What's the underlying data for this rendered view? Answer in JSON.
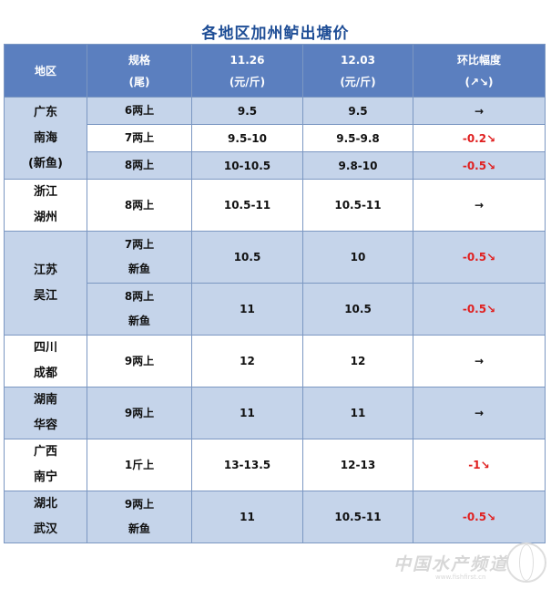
{
  "title": "各地区加州鲈出塘价",
  "header": {
    "region": "地区",
    "spec": "规格",
    "spec_unit": "(尾)",
    "date1": "11.26",
    "date1_unit": "(元/斤)",
    "date2": "12.03",
    "date2_unit": "(元/斤)",
    "change": "环比幅度",
    "change_unit": "(↗↘)"
  },
  "rows": [
    {
      "region": [
        "广东",
        "南海",
        "(新鱼)"
      ],
      "specs": [
        {
          "spec": [
            "6两上"
          ],
          "p1": "9.5",
          "p2": "9.5",
          "change": "→"
        },
        {
          "spec": [
            "7两上"
          ],
          "p1": "9.5-10",
          "p2": "9.5-9.8",
          "change": "-0.2↘"
        },
        {
          "spec": [
            "8两上"
          ],
          "p1": "10-10.5",
          "p2": "9.8-10",
          "change": "-0.5↘"
        }
      ]
    },
    {
      "region": [
        "浙江",
        "湖州"
      ],
      "specs": [
        {
          "spec": [
            "8两上"
          ],
          "p1": "10.5-11",
          "p2": "10.5-11",
          "change": "→"
        }
      ]
    },
    {
      "region": [
        "江苏",
        "吴江"
      ],
      "specs": [
        {
          "spec": [
            "7两上",
            "新鱼"
          ],
          "p1": "10.5",
          "p2": "10",
          "change": "-0.5↘"
        },
        {
          "spec": [
            "8两上",
            "新鱼"
          ],
          "p1": "11",
          "p2": "10.5",
          "change": "-0.5↘"
        }
      ]
    },
    {
      "region": [
        "四川",
        "成都"
      ],
      "specs": [
        {
          "spec": [
            "9两上"
          ],
          "p1": "12",
          "p2": "12",
          "change": "→"
        }
      ]
    },
    {
      "region": [
        "湖南",
        "华容"
      ],
      "specs": [
        {
          "spec": [
            "9两上"
          ],
          "p1": "11",
          "p2": "11",
          "change": "→"
        }
      ]
    },
    {
      "region": [
        "广西",
        "南宁"
      ],
      "specs": [
        {
          "spec": [
            "1斤上"
          ],
          "p1": "13-13.5",
          "p2": "12-13",
          "change": "-1↘"
        }
      ]
    },
    {
      "region": [
        "湖北",
        "武汉"
      ],
      "specs": [
        {
          "spec": [
            "9两上",
            "新鱼"
          ],
          "p1": "11",
          "p2": "10.5-11",
          "change": "-0.5↘"
        }
      ]
    }
  ],
  "watermark": "中国水产频道",
  "watermark_url": "www.fishfirst.cn",
  "colors": {
    "header_bg": "#5b7fbf",
    "shade_bg": "#c5d4ea",
    "title": "#1f4e96",
    "negative": "#e02020"
  }
}
